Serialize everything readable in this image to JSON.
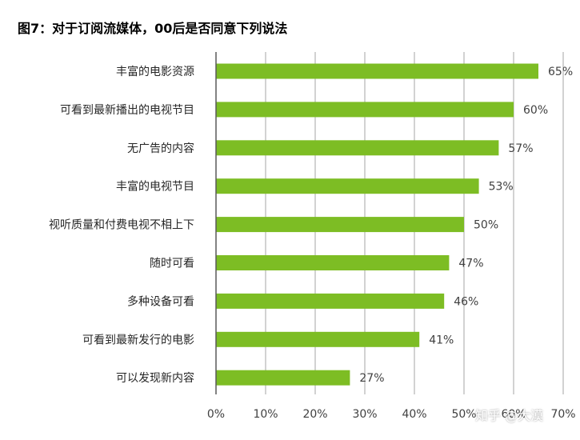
{
  "title": "图7：对于订阅流媒体，00后是否同意下列说法",
  "watermark": "知乎 @大漠",
  "chart_data": {
    "type": "bar",
    "orientation": "horizontal",
    "categories": [
      "丰富的电影资源",
      "可看到最新播出的电视节目",
      "无广告的内容",
      "丰富的电视节目",
      "视听质量和付费电视不相上下",
      "随时可看",
      "多种设备可看",
      "可看到最新发行的电影",
      "可以发现新内容"
    ],
    "values": [
      65,
      60,
      57,
      53,
      50,
      47,
      46,
      41,
      27
    ],
    "value_labels": [
      "65%",
      "60%",
      "57%",
      "53%",
      "50%",
      "47%",
      "46%",
      "41%",
      "27%"
    ],
    "x_ticks": [
      0,
      10,
      20,
      30,
      40,
      50,
      60,
      70
    ],
    "x_tick_labels": [
      "0%",
      "10%",
      "20%",
      "30%",
      "40%",
      "50%",
      "60%",
      "70%"
    ],
    "xlim": [
      0,
      70
    ],
    "grid": true,
    "bar_color": "#7dbd24",
    "grid_color": "#a6a6a6",
    "axis_color": "#595959"
  }
}
